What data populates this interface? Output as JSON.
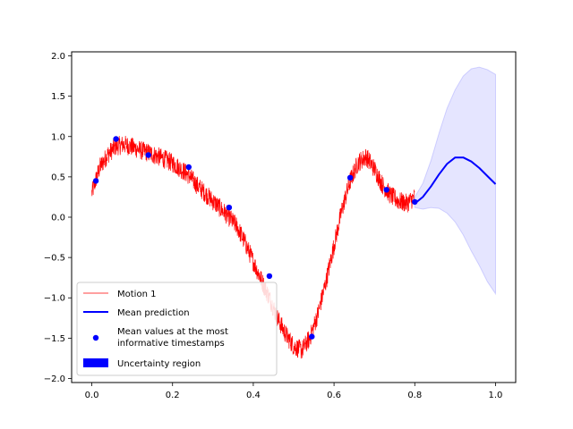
{
  "chart_data": {
    "type": "line",
    "title": "",
    "xlabel": "",
    "ylabel": "",
    "xlim": [
      -0.05,
      1.05
    ],
    "ylim": [
      -2.05,
      2.05
    ],
    "xticks": [
      0.0,
      0.2,
      0.4,
      0.6,
      0.8,
      1.0
    ],
    "xtick_labels": [
      "0.0",
      "0.2",
      "0.4",
      "0.6",
      "0.8",
      "1.0"
    ],
    "yticks": [
      -2.0,
      -1.5,
      -1.0,
      -0.5,
      0.0,
      0.5,
      1.0,
      1.5,
      2.0
    ],
    "ytick_labels": [
      "−2.0",
      "−1.5",
      "−1.0",
      "−0.5",
      "0.0",
      "0.5",
      "1.0",
      "1.5",
      "2.0"
    ],
    "grid": false,
    "legend_position": "lower-left",
    "motion": {
      "name": "Motion 1",
      "color": "#ff0000",
      "x": [
        0.0,
        0.02,
        0.04,
        0.06,
        0.08,
        0.1,
        0.12,
        0.14,
        0.16,
        0.18,
        0.2,
        0.22,
        0.24,
        0.26,
        0.28,
        0.3,
        0.32,
        0.34,
        0.36,
        0.38,
        0.4,
        0.42,
        0.44,
        0.46,
        0.48,
        0.5,
        0.52,
        0.54,
        0.56,
        0.58,
        0.6,
        0.62,
        0.64,
        0.66,
        0.68,
        0.7,
        0.72,
        0.74,
        0.76,
        0.78,
        0.8
      ],
      "y": [
        0.3,
        0.62,
        0.78,
        0.88,
        0.9,
        0.87,
        0.83,
        0.8,
        0.76,
        0.72,
        0.67,
        0.6,
        0.52,
        0.4,
        0.3,
        0.2,
        0.1,
        0.0,
        -0.12,
        -0.32,
        -0.55,
        -0.78,
        -1.0,
        -1.25,
        -1.45,
        -1.6,
        -1.65,
        -1.5,
        -1.2,
        -0.8,
        -0.35,
        0.1,
        0.45,
        0.68,
        0.75,
        0.6,
        0.4,
        0.27,
        0.2,
        0.17,
        0.25
      ],
      "noise_band": 0.12
    },
    "mean_prediction": {
      "name": "Mean prediction",
      "color": "#0000ff",
      "x": [
        0.8,
        0.82,
        0.84,
        0.86,
        0.88,
        0.9,
        0.92,
        0.94,
        0.96,
        0.98,
        1.0
      ],
      "y": [
        0.17,
        0.25,
        0.38,
        0.53,
        0.66,
        0.74,
        0.74,
        0.69,
        0.61,
        0.51,
        0.41
      ]
    },
    "uncertainty": {
      "name": "Uncertainty region",
      "color": "#0000ff",
      "fill_opacity": 0.1,
      "x": [
        0.8,
        0.82,
        0.84,
        0.86,
        0.88,
        0.9,
        0.92,
        0.94,
        0.96,
        0.98,
        1.0
      ],
      "upper": [
        0.25,
        0.42,
        0.7,
        1.04,
        1.35,
        1.58,
        1.75,
        1.84,
        1.86,
        1.83,
        1.77
      ],
      "lower": [
        0.12,
        0.1,
        0.12,
        0.11,
        0.05,
        -0.06,
        -0.22,
        -0.42,
        -0.6,
        -0.8,
        -0.95
      ]
    },
    "informative_points": {
      "name": "Mean values at the most informative timestamps",
      "name_line1": "Mean values at the most",
      "name_line2": "informative timestamps",
      "color": "#0000ff",
      "x": [
        0.01,
        0.06,
        0.14,
        0.24,
        0.34,
        0.44,
        0.545,
        0.64,
        0.73,
        0.8
      ],
      "y": [
        0.45,
        0.97,
        0.77,
        0.62,
        0.12,
        -0.73,
        -1.48,
        0.49,
        0.34,
        0.19
      ]
    }
  }
}
